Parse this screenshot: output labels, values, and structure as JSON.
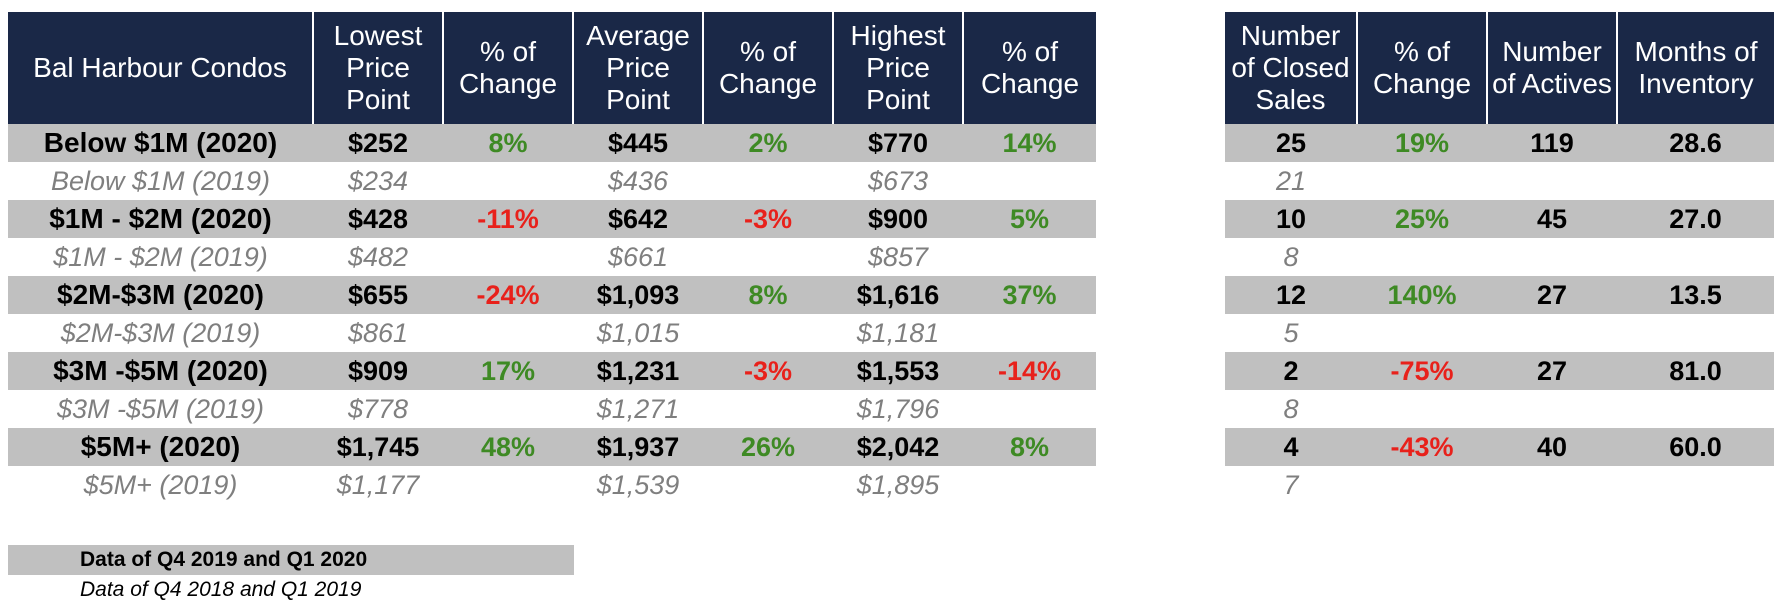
{
  "title": "Bal Harbour Condos",
  "left_headers": [
    "Lowest Price Point",
    "% of Change",
    "Average Price Point",
    "% of Change",
    "Highest Price Point",
    "% of Change"
  ],
  "right_headers": [
    "Number of Closed Sales",
    "% of Change",
    "Number of Actives",
    "Months of Inventory"
  ],
  "rows": [
    {
      "label": "Below $1M (2020)",
      "lowest": "$252",
      "lowest_chg": "8%",
      "avg": "$445",
      "avg_chg": "2%",
      "highest": "$770",
      "highest_chg": "14%",
      "closed": "25",
      "closed_chg": "19%",
      "actives": "119",
      "inventory": "28.6"
    },
    {
      "label": "Below $1M (2019)",
      "lowest": "$234",
      "avg": "$436",
      "highest": "$673",
      "closed": "21"
    },
    {
      "label": "$1M - $2M (2020)",
      "lowest": "$428",
      "lowest_chg": "-11%",
      "avg": "$642",
      "avg_chg": "-3%",
      "highest": "$900",
      "highest_chg": "5%",
      "closed": "10",
      "closed_chg": "25%",
      "actives": "45",
      "inventory": "27.0"
    },
    {
      "label": "$1M - $2M (2019)",
      "lowest": "$482",
      "avg": "$661",
      "highest": "$857",
      "closed": "8"
    },
    {
      "label": "$2M-$3M (2020)",
      "lowest": "$655",
      "lowest_chg": "-24%",
      "avg": "$1,093",
      "avg_chg": "8%",
      "highest": "$1,616",
      "highest_chg": "37%",
      "closed": "12",
      "closed_chg": "140%",
      "actives": "27",
      "inventory": "13.5"
    },
    {
      "label": "$2M-$3M (2019)",
      "lowest": "$861",
      "avg": "$1,015",
      "highest": "$1,181",
      "closed": "5"
    },
    {
      "label": "$3M -$5M (2020)",
      "lowest": "$909",
      "lowest_chg": "17%",
      "avg": "$1,231",
      "avg_chg": "-3%",
      "highest": "$1,553",
      "highest_chg": "-14%",
      "closed": "2",
      "closed_chg": "-75%",
      "actives": "27",
      "inventory": "81.0"
    },
    {
      "label": "$3M -$5M (2019)",
      "lowest": "$778",
      "avg": "$1,271",
      "highest": "$1,796",
      "closed": "8"
    },
    {
      "label": "$5M+ (2020)",
      "lowest": "$1,745",
      "lowest_chg": "48%",
      "avg": "$1,937",
      "avg_chg": "26%",
      "highest": "$2,042",
      "highest_chg": "8%",
      "closed": "4",
      "closed_chg": "-43%",
      "actives": "40",
      "inventory": "60.0"
    },
    {
      "label": "$5M+ (2019)",
      "lowest": "$1,177",
      "avg": "$1,539",
      "highest": "$1,895",
      "closed": "7"
    }
  ],
  "notes": {
    "current": "Data of Q4 2019 and Q1 2020",
    "previous": "Data of Q4 2018 and Q1 2019"
  },
  "colors": {
    "header_bg": "#1a2847",
    "band_bg": "#c0c0c0",
    "positive": "#3e8a24",
    "negative": "#e8211b",
    "prior_year_text": "#7f7f7f"
  }
}
